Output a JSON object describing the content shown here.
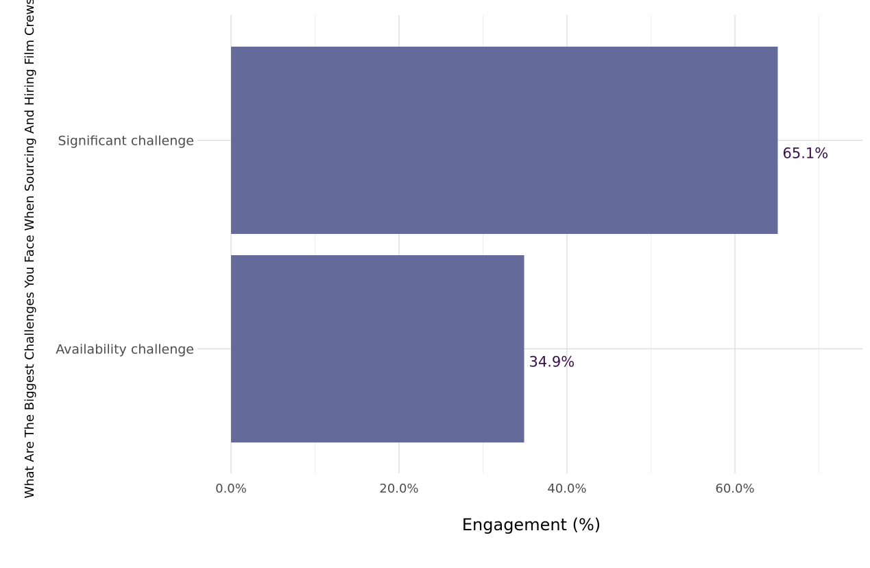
{
  "chart_data": {
    "type": "bar",
    "orientation": "horizontal",
    "categories": [
      "Significant challenge",
      "Availability challenge"
    ],
    "values": [
      65.1,
      34.9
    ],
    "data_labels": [
      "65.1%",
      "34.9%"
    ],
    "xlabel": "Engagement (%)",
    "ylabel": "What Are The Biggest Challenges You Face When Sourcing And Hiring Film Crews",
    "xlim": [
      0,
      75
    ],
    "xticks": [
      0,
      20,
      40,
      60
    ],
    "xtick_labels": [
      "0.0%",
      "20.0%",
      "40.0%",
      "60.0%"
    ],
    "grid": true,
    "legend": "none",
    "colors": {
      "bar": "#646a99",
      "label": "#3b0f4f",
      "grid_major": "#d9d9d9",
      "grid_minor": "#efefef"
    }
  }
}
